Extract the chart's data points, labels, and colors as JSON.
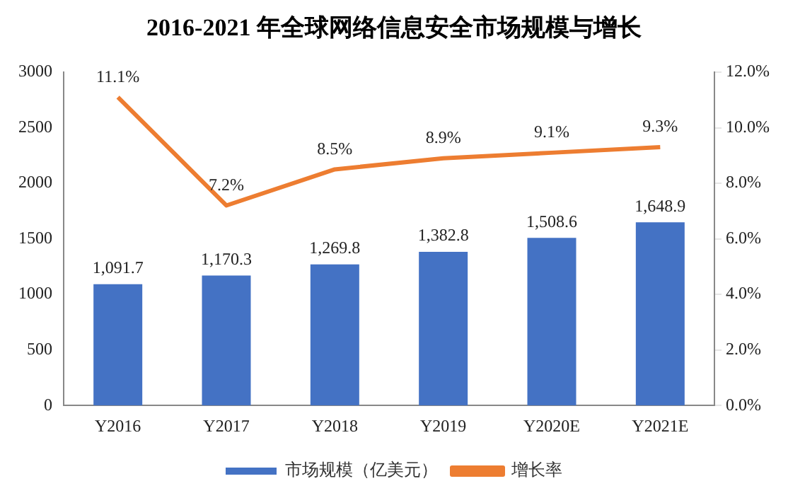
{
  "chart_data": {
    "type": "bar",
    "title": "2016-2021 年全球网络信息安全市场规模与增长",
    "categories": [
      "Y2016",
      "Y2017",
      "Y2018",
      "Y2019",
      "Y2020E",
      "Y2021E"
    ],
    "series": [
      {
        "name": "市场规模（亿美元）",
        "color": "#4472c4",
        "values": [
          1091.7,
          1170.3,
          1269.8,
          1382.8,
          1508.6,
          1648.9
        ],
        "value_labels": [
          "1,091.7",
          "1,170.3",
          "1,269.8",
          "1,382.8",
          "1,508.6",
          "1,648.9"
        ]
      },
      {
        "name": "增长率",
        "type": "line",
        "axis": "y2",
        "color": "#ed7d31",
        "marker": "none",
        "values": [
          11.1,
          7.2,
          8.5,
          8.9,
          9.1,
          9.3
        ],
        "value_labels": [
          "11.1%",
          "7.2%",
          "8.5%",
          "8.9%",
          "9.1%",
          "9.3%"
        ]
      }
    ],
    "ylim": [
      0,
      3000
    ],
    "yticks": [
      0,
      500,
      1000,
      1500,
      2000,
      2500,
      3000
    ],
    "y2lim": [
      0,
      12
    ],
    "y2ticks": [
      {
        "value": 0,
        "label": "0.0%"
      },
      {
        "value": 2,
        "label": "2.0%"
      },
      {
        "value": 4,
        "label": "4.0%"
      },
      {
        "value": 6,
        "label": "6.0%"
      },
      {
        "value": 8,
        "label": "8.0%"
      },
      {
        "value": 10,
        "label": "10.0%"
      },
      {
        "value": 12,
        "label": "12.0%"
      }
    ],
    "grid": false,
    "legend": "bottom"
  }
}
